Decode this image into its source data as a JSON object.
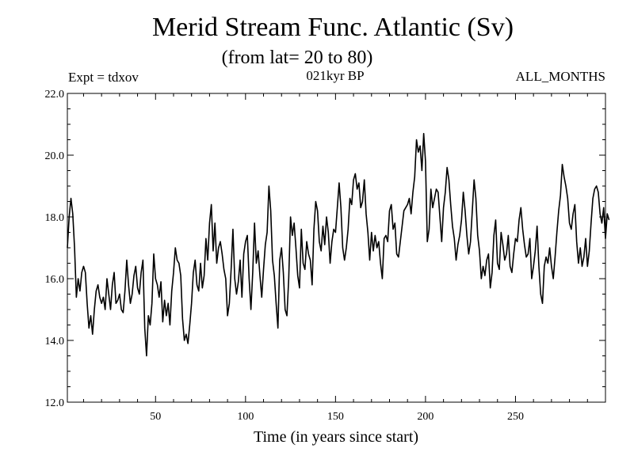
{
  "chart_data": {
    "type": "line",
    "title": "Merid Stream Func. Atlantic (Sv)",
    "subtitle": "(from lat= 20 to 80)",
    "annotations": {
      "left": "Expt = tdxov",
      "center": "021kyr BP",
      "right": "ALL_MONTHS"
    },
    "xlabel": "Time (in years since start)",
    "ylabel": "",
    "xlim": [
      1,
      300
    ],
    "ylim": [
      12.0,
      22.0
    ],
    "xticks": [
      50,
      100,
      150,
      200,
      250
    ],
    "xtick_labels": [
      "50",
      "100",
      "150",
      "200",
      "250"
    ],
    "yticks": [
      12.0,
      14.0,
      16.0,
      18.0,
      20.0,
      22.0
    ],
    "ytick_labels": [
      "12.0",
      "14.0",
      "16.0",
      "18.0",
      "20.0",
      "22.0"
    ],
    "series": [
      {
        "name": "Merid Stream Func. Atlantic",
        "x_start": 1,
        "x_step": 1,
        "values": [
          17.0,
          18.0,
          18.6,
          18.1,
          17.0,
          15.4,
          16.0,
          15.6,
          16.2,
          16.4,
          16.2,
          15.2,
          14.4,
          14.8,
          14.2,
          15.0,
          15.6,
          15.8,
          15.4,
          15.2,
          15.4,
          15.0,
          16.0,
          15.5,
          15.0,
          15.8,
          16.2,
          15.2,
          15.3,
          15.5,
          15.0,
          14.9,
          15.6,
          16.6,
          15.8,
          15.2,
          15.5,
          16.1,
          16.4,
          15.7,
          15.5,
          16.2,
          16.6,
          14.4,
          13.5,
          14.8,
          14.5,
          15.2,
          16.8,
          16.0,
          15.8,
          15.4,
          15.9,
          14.6,
          15.3,
          14.8,
          15.2,
          14.5,
          15.6,
          16.2,
          17.0,
          16.6,
          16.5,
          16.1,
          14.7,
          14.0,
          14.2,
          13.9,
          14.5,
          15.2,
          16.2,
          16.6,
          15.8,
          15.6,
          16.5,
          15.7,
          16.1,
          17.3,
          16.6,
          17.8,
          18.4,
          16.9,
          17.8,
          16.5,
          17.0,
          17.2,
          16.8,
          16.3,
          16.0,
          14.8,
          15.2,
          16.3,
          17.6,
          16.0,
          15.5,
          15.9,
          16.6,
          15.4,
          16.8,
          17.2,
          17.4,
          16.0,
          15.0,
          16.2,
          17.8,
          16.5,
          16.9,
          16.1,
          15.4,
          16.3,
          17.1,
          17.5,
          19.0,
          18.2,
          16.6,
          16.1,
          15.2,
          14.4,
          16.6,
          17.0,
          16.2,
          15.0,
          14.8,
          16.0,
          18.0,
          17.4,
          17.8,
          17.0,
          16.1,
          15.7,
          17.6,
          16.5,
          16.3,
          17.2,
          16.8,
          16.6,
          15.8,
          17.6,
          18.5,
          18.2,
          17.2,
          16.9,
          17.7,
          17.1,
          18.0,
          17.5,
          16.5,
          17.2,
          17.6,
          17.5,
          18.3,
          19.1,
          18.3,
          17.0,
          16.6,
          17.0,
          17.6,
          18.6,
          18.4,
          19.2,
          19.4,
          18.9,
          19.1,
          18.3,
          18.5,
          19.2,
          18.1,
          17.5,
          16.6,
          17.5,
          16.9,
          17.4,
          17.0,
          17.2,
          16.5,
          16.0,
          17.3,
          17.4,
          17.2,
          18.2,
          18.4,
          17.6,
          17.8,
          16.8,
          16.7,
          17.2,
          17.7,
          18.2,
          18.3,
          18.4,
          18.6,
          18.1,
          18.8,
          19.3,
          20.5,
          20.1,
          20.3,
          19.5,
          20.7,
          19.8,
          17.2,
          17.6,
          18.9,
          18.3,
          18.6,
          18.9,
          18.8,
          18.0,
          17.2,
          18.3,
          18.8,
          19.6,
          19.2,
          18.4,
          17.7,
          17.3,
          16.6,
          17.1,
          17.4,
          17.9,
          18.8,
          18.2,
          17.4,
          16.8,
          17.2,
          18.2,
          19.2,
          18.6,
          17.4,
          16.9,
          16.0,
          16.4,
          16.1,
          16.6,
          16.8,
          15.7,
          16.2,
          17.4,
          17.9,
          16.5,
          16.3,
          17.5,
          17.1,
          16.6,
          16.8,
          17.4,
          16.4,
          16.2,
          16.8,
          17.3,
          17.2,
          17.9,
          18.3,
          17.6,
          17.1,
          16.7,
          16.8,
          17.3,
          16.0,
          16.4,
          16.9,
          17.7,
          16.4,
          15.5,
          15.2,
          16.4,
          16.7,
          16.5,
          17.0,
          16.4,
          16.0,
          16.7,
          17.5,
          18.2,
          18.7,
          19.7,
          19.3,
          19.0,
          18.6,
          17.8,
          17.6,
          18.1,
          18.4,
          17.2,
          16.5,
          17.0,
          16.4,
          16.7,
          17.3,
          16.4,
          16.9,
          17.8,
          18.6,
          18.9,
          19.0,
          18.8,
          18.1,
          17.8,
          18.3,
          17.3,
          18.1,
          17.9
        ]
      }
    ]
  }
}
